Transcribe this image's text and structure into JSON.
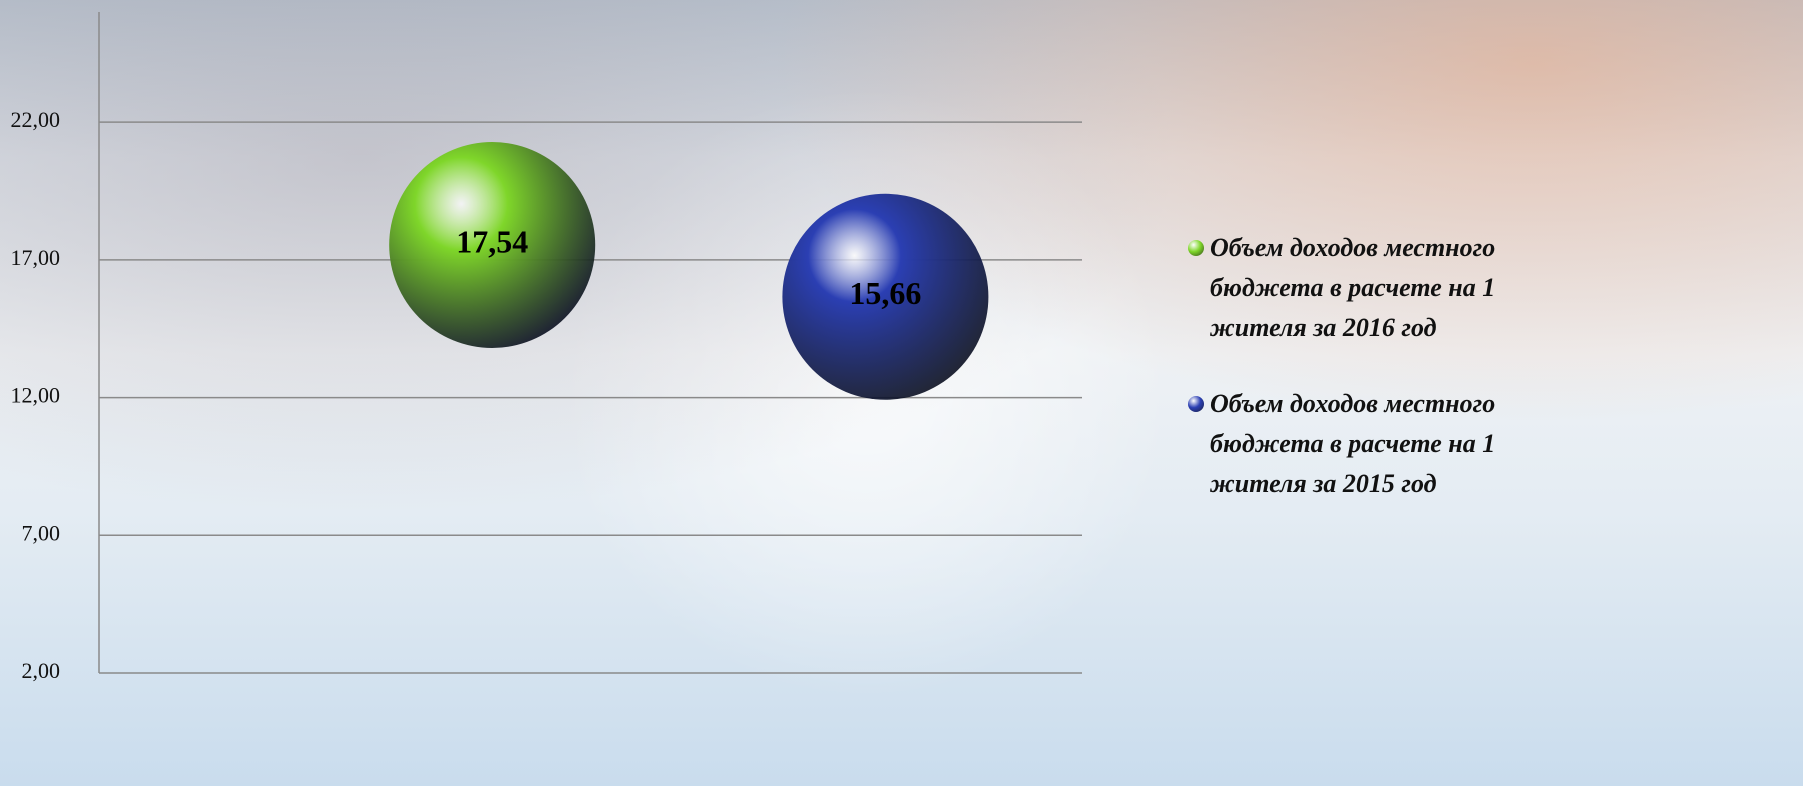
{
  "chart_data": {
    "type": "bubble",
    "series": [
      {
        "name": "Объем доходов местного бюджета в расчете на 1 жителя за 2016 год",
        "color": "#7fd62a",
        "values": [
          17.54
        ],
        "value_labels": [
          "17,54"
        ]
      },
      {
        "name": "Объем доходов местного бюджета в расчете на 1 жителя за 2015 год",
        "color": "#2b3fb3",
        "values": [
          15.66
        ],
        "value_labels": [
          "15,66"
        ]
      }
    ],
    "ylim": [
      2,
      26
    ],
    "yticks": [
      {
        "value": 2,
        "label": "2,00"
      },
      {
        "value": 7,
        "label": "7,00"
      },
      {
        "value": 12,
        "label": "12,00"
      },
      {
        "value": 17,
        "label": "17,00"
      },
      {
        "value": 22,
        "label": "22,00"
      }
    ],
    "grid": true,
    "legend": "right"
  }
}
